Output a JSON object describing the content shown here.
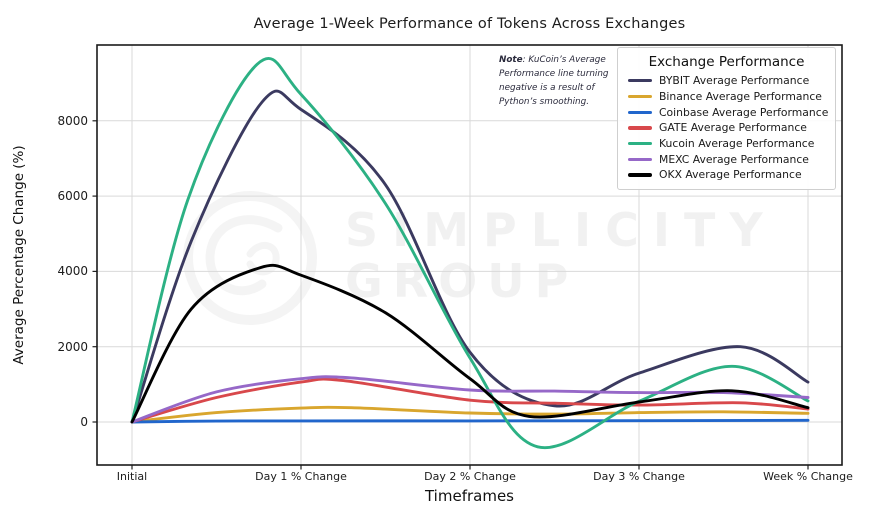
{
  "watermark": {
    "line1": "SIMPLICITY",
    "line2": "GROUP"
  },
  "note": {
    "label": "Note",
    "text": ": KuCoin’s Average Performance line turning negative is a result of Python’s smoothing."
  },
  "chart_data": {
    "type": "line",
    "title": "Average 1-Week Performance of Tokens Across Exchanges",
    "xlabel": "Timeframes",
    "ylabel": "Average Percentage Change (%)",
    "categories": [
      "Initial",
      "Day 1 % Change",
      "Day 2 % Change",
      "Day 3 % Change",
      "Week % Change"
    ],
    "y_ticks": [
      0,
      2000,
      4000,
      6000,
      8000
    ],
    "ylim": [
      -1150,
      10050
    ],
    "grid": true,
    "legend_title": "Exchange Performance",
    "legend_position": "upper right",
    "smoothing_note": "Curves are spline-smoothed; KuCoin dips negative between Day 2 and Day 3 due to smoothing",
    "series": [
      {
        "name": "BYBIT Average Performance",
        "color": "#3b3a60",
        "values": [
          0,
          8300,
          1850,
          1300,
          1060
        ],
        "curve": [
          [
            0,
            0
          ],
          [
            0.35,
            4800
          ],
          [
            0.77,
            8500
          ],
          [
            1,
            8300
          ],
          [
            1.5,
            6300
          ],
          [
            2,
            1850
          ],
          [
            2.5,
            430
          ],
          [
            3,
            1300
          ],
          [
            3.6,
            2000
          ],
          [
            4,
            1060
          ]
        ]
      },
      {
        "name": "Binance Average Performance",
        "color": "#d9a62e",
        "values": [
          0,
          370,
          240,
          250,
          230
        ],
        "curve": [
          [
            0,
            0
          ],
          [
            0.5,
            250
          ],
          [
            1,
            370
          ],
          [
            1.3,
            380
          ],
          [
            2,
            240
          ],
          [
            2.5,
            210
          ],
          [
            3,
            250
          ],
          [
            3.5,
            270
          ],
          [
            4,
            230
          ]
        ]
      },
      {
        "name": "Coinbase Average Performance",
        "color": "#2166cc",
        "values": [
          0,
          30,
          30,
          35,
          45
        ],
        "curve": [
          [
            0,
            0
          ],
          [
            0.5,
            25
          ],
          [
            1,
            30
          ],
          [
            2,
            30
          ],
          [
            3,
            35
          ],
          [
            4,
            45
          ]
        ]
      },
      {
        "name": "GATE Average Performance",
        "color": "#d8484b",
        "values": [
          0,
          1060,
          580,
          450,
          345
        ],
        "curve": [
          [
            0,
            0
          ],
          [
            0.5,
            650
          ],
          [
            1,
            1060
          ],
          [
            1.25,
            1100
          ],
          [
            2,
            580
          ],
          [
            2.5,
            500
          ],
          [
            3,
            450
          ],
          [
            3.6,
            510
          ],
          [
            4,
            345
          ]
        ]
      },
      {
        "name": "Kucoin Average Performance",
        "color": "#2cb184",
        "values": [
          0,
          8700,
          1700,
          550,
          560
        ],
        "curve": [
          [
            0,
            0
          ],
          [
            0.33,
            5900
          ],
          [
            0.74,
            9500
          ],
          [
            1,
            8700
          ],
          [
            1.5,
            5800
          ],
          [
            2,
            1700
          ],
          [
            2.4,
            -660
          ],
          [
            3,
            550
          ],
          [
            3.55,
            1480
          ],
          [
            4,
            560
          ]
        ]
      },
      {
        "name": "MEXC Average Performance",
        "color": "#9668c8",
        "values": [
          0,
          1150,
          850,
          780,
          650
        ],
        "curve": [
          [
            0,
            0
          ],
          [
            0.5,
            800
          ],
          [
            1,
            1150
          ],
          [
            1.3,
            1170
          ],
          [
            2,
            850
          ],
          [
            2.5,
            820
          ],
          [
            3,
            780
          ],
          [
            3.5,
            780
          ],
          [
            4,
            650
          ]
        ]
      },
      {
        "name": "OKX Average Performance",
        "color": "#000000",
        "values": [
          0,
          3900,
          1150,
          530,
          380
        ],
        "curve": [
          [
            0,
            0
          ],
          [
            0.35,
            3000
          ],
          [
            0.76,
            4100
          ],
          [
            1,
            3900
          ],
          [
            1.5,
            2900
          ],
          [
            2,
            1150
          ],
          [
            2.35,
            150
          ],
          [
            3,
            530
          ],
          [
            3.55,
            830
          ],
          [
            4,
            380
          ]
        ]
      }
    ]
  }
}
